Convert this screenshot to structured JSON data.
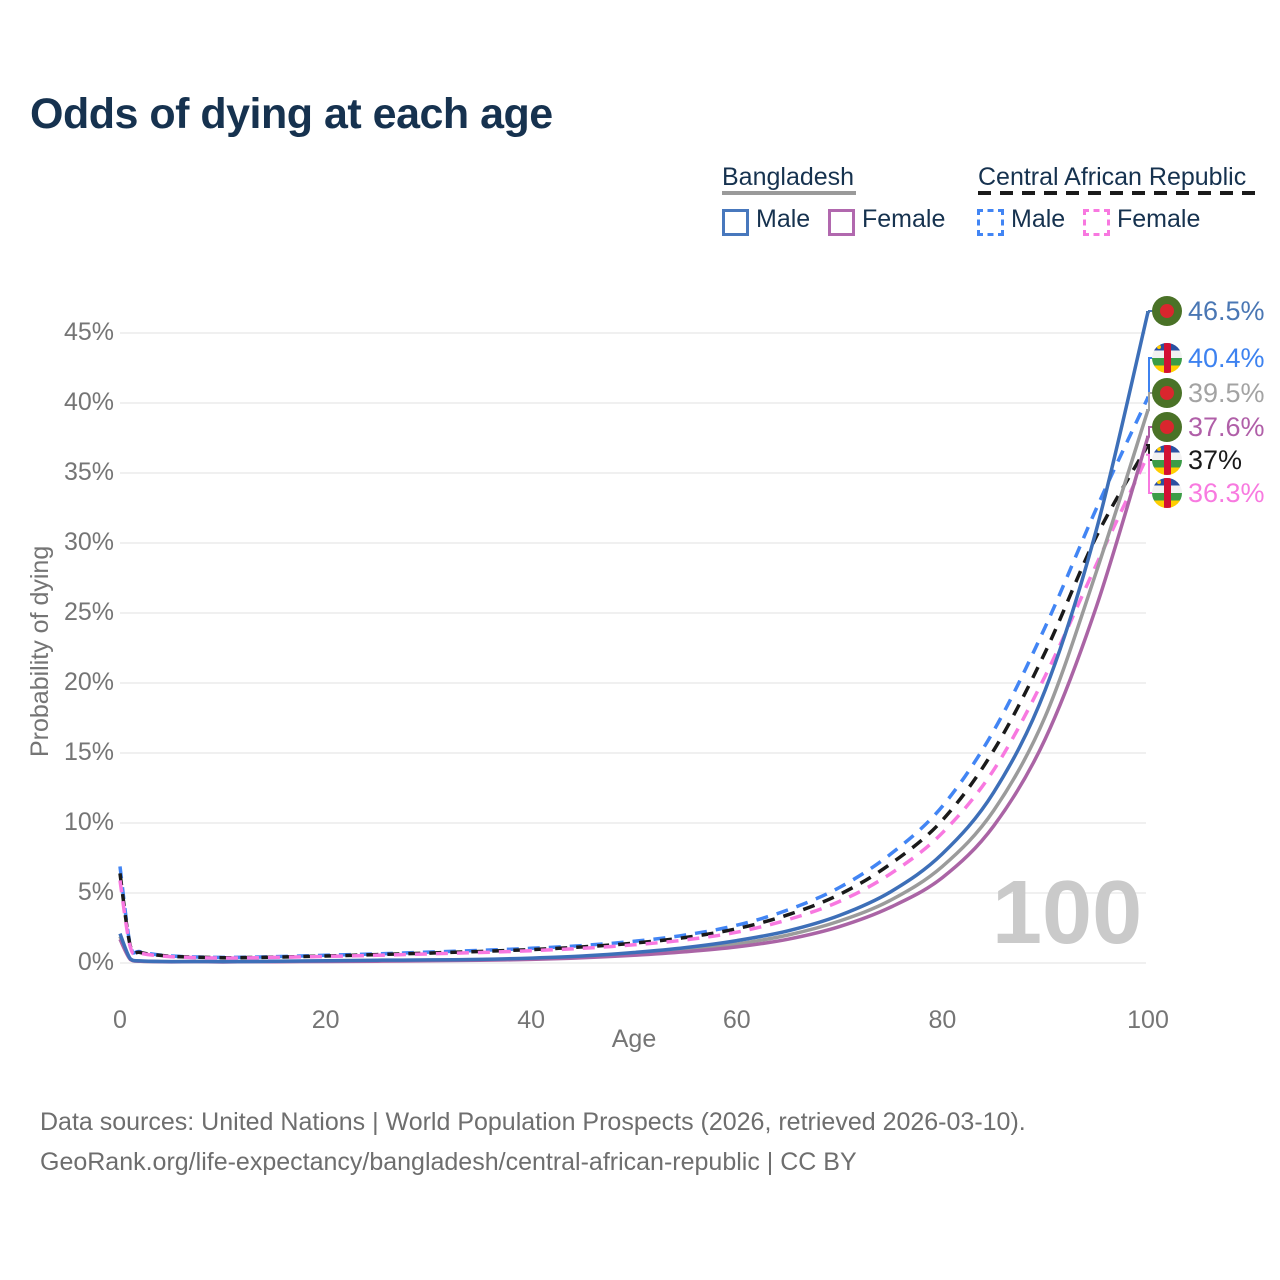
{
  "title": "Odds of dying at each age",
  "legend": {
    "groups": [
      {
        "name": "Bangladesh",
        "line_style": "solid",
        "underline_color": "#9a9a9a",
        "items": [
          {
            "label": "Male",
            "color": "#4878bd"
          },
          {
            "label": "Female",
            "color": "#b168ae"
          }
        ]
      },
      {
        "name": "Central African Republic",
        "line_style": "dashed",
        "underline_color": "#1a1a1a",
        "items": [
          {
            "label": "Male",
            "color": "#4285f4"
          },
          {
            "label": "Female",
            "color": "#f878e0"
          }
        ]
      }
    ]
  },
  "watermark_age": "100",
  "footer": {
    "line1": "Data sources: United Nations | World Population Prospects (2026, retrieved 2026-03-10).",
    "line2": "GeoRank.org/life-expectancy/bangladesh/central-african-republic | CC BY"
  },
  "chart_data": {
    "type": "line",
    "title": "Odds of dying at each age",
    "xlabel": "Age",
    "ylabel": "Probability of dying",
    "xlim": [
      0,
      100
    ],
    "ylim_pct": [
      0,
      47
    ],
    "x_ticks": [
      0,
      20,
      40,
      60,
      80,
      100
    ],
    "y_ticks_pct": [
      0,
      5,
      10,
      15,
      20,
      25,
      30,
      35,
      40,
      45
    ],
    "y_tick_labels": [
      "0%",
      "5%",
      "10%",
      "15%",
      "20%",
      "25%",
      "30%",
      "35%",
      "40%",
      "45%"
    ],
    "grid": "horizontal-only",
    "legend_position": "top-right",
    "ages": [
      0,
      1,
      2,
      5,
      10,
      15,
      20,
      25,
      30,
      35,
      40,
      45,
      50,
      55,
      60,
      65,
      70,
      75,
      80,
      85,
      90,
      95,
      100
    ],
    "series": [
      {
        "name": "Central African Republic Male",
        "country": "car",
        "sex": "male",
        "style": "dashed",
        "color": "#4285f4",
        "values_pct": [
          6.9,
          1.3,
          0.8,
          0.5,
          0.4,
          0.45,
          0.55,
          0.65,
          0.78,
          0.9,
          1.05,
          1.25,
          1.55,
          2.0,
          2.7,
          3.8,
          5.4,
          7.8,
          11.2,
          16.6,
          24.0,
          32.5,
          40.4
        ]
      },
      {
        "name": "Central African Republic Both sexes",
        "country": "car",
        "sex": "both",
        "style": "dashed",
        "color": "#1a1a1a",
        "values_pct": [
          6.4,
          1.22,
          0.75,
          0.48,
          0.38,
          0.42,
          0.5,
          0.6,
          0.71,
          0.82,
          0.96,
          1.15,
          1.42,
          1.82,
          2.45,
          3.45,
          4.9,
          7.1,
          10.2,
          15.2,
          22.2,
          30.5,
          37.0
        ]
      },
      {
        "name": "Central African Republic Female",
        "country": "car",
        "sex": "female",
        "style": "dashed",
        "color": "#f878e0",
        "values_pct": [
          5.9,
          1.15,
          0.7,
          0.45,
          0.35,
          0.4,
          0.47,
          0.55,
          0.65,
          0.75,
          0.88,
          1.05,
          1.3,
          1.65,
          2.2,
          3.1,
          4.4,
          6.4,
          9.3,
          13.8,
          20.5,
          28.5,
          36.3
        ]
      },
      {
        "name": "Bangladesh Both sexes",
        "country": "bd",
        "sex": "both",
        "style": "solid",
        "color": "#9b9b9b",
        "values_pct": [
          1.9,
          0.28,
          0.13,
          0.09,
          0.09,
          0.1,
          0.13,
          0.16,
          0.19,
          0.23,
          0.3,
          0.43,
          0.64,
          0.94,
          1.36,
          2.0,
          3.0,
          4.5,
          6.9,
          10.9,
          17.6,
          28.0,
          39.5
        ]
      },
      {
        "name": "Bangladesh Female",
        "country": "bd",
        "sex": "female",
        "style": "solid",
        "color": "#aa64a5",
        "values_pct": [
          1.7,
          0.25,
          0.12,
          0.08,
          0.07,
          0.09,
          0.11,
          0.13,
          0.16,
          0.2,
          0.26,
          0.37,
          0.55,
          0.8,
          1.15,
          1.7,
          2.6,
          4.0,
          6.1,
          9.8,
          16.0,
          25.5,
          37.6
        ]
      },
      {
        "name": "Bangladesh Male",
        "country": "bd",
        "sex": "male",
        "style": "solid",
        "color": "#3d6fb8",
        "values_pct": [
          2.1,
          0.3,
          0.15,
          0.1,
          0.1,
          0.12,
          0.16,
          0.2,
          0.22,
          0.26,
          0.35,
          0.5,
          0.75,
          1.1,
          1.6,
          2.3,
          3.4,
          5.1,
          7.8,
          12.2,
          19.5,
          31.0,
          46.5
        ]
      }
    ],
    "end_labels": [
      {
        "text": "46.5%",
        "value_pct": 46.5,
        "flag": "bd",
        "color": "#4a77b4",
        "series": "Bangladesh Male"
      },
      {
        "text": "40.4%",
        "value_pct": 40.4,
        "flag": "car",
        "color": "#3d82f0",
        "series": "Central African Republic Male"
      },
      {
        "text": "39.5%",
        "value_pct": 39.5,
        "flag": "bd",
        "color": "#a3a3a3",
        "series": "Bangladesh Both sexes"
      },
      {
        "text": "37.6%",
        "value_pct": 37.6,
        "flag": "bd",
        "color": "#b05fa8",
        "series": "Bangladesh Female"
      },
      {
        "text": "37%",
        "value_pct": 37.0,
        "flag": "car",
        "color": "#1a1a1a",
        "series": "Central African Republic Both sexes"
      },
      {
        "text": "36.3%",
        "value_pct": 36.3,
        "flag": "car",
        "color": "#f87ae0",
        "series": "Central African Republic Female"
      }
    ],
    "flag_colors": {
      "bangladesh": {
        "field": "#4a7227",
        "disc": "#d9262e"
      },
      "central_african_republic": {
        "blue": "#2b50a1",
        "white": "#f2f2f2",
        "green": "#3b9c46",
        "yellow": "#ffce00",
        "red": "#d21034"
      }
    }
  }
}
